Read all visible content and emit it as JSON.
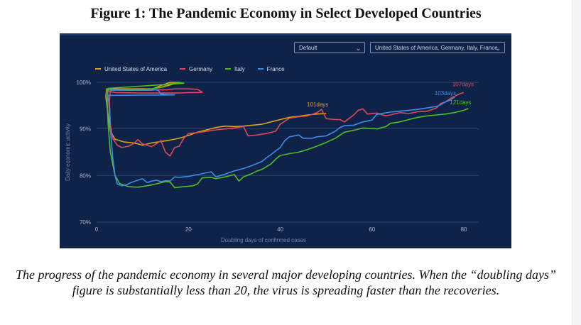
{
  "figure": {
    "title": "Figure 1: The Pandemic Economy in Select Developed Countries",
    "caption": "The progress of the pandemic economy in several major developing countries. When the “doubling days” figure is substantially less than 20, the virus is spreading faster than the recoveries."
  },
  "controls": {
    "mode_value": "Default",
    "countries_value": "United States of America, Germany, Italy, France",
    "dropdown_icon": "chevron-down-icon"
  },
  "colors": {
    "background": "#0f2349",
    "grid": "#2a416b",
    "axis_text": "#aab6cc",
    "usa": "#d9a317",
    "germany": "#e0475b",
    "italy": "#4fbd24",
    "france": "#3d8ce6"
  },
  "chart_data": {
    "type": "line",
    "title": "",
    "xlabel": "Doubling days of confirmed cases",
    "ylabel": "Daily economic activity",
    "xlim": [
      0,
      82
    ],
    "ylim": [
      70,
      100
    ],
    "x_ticks": [
      0,
      20,
      40,
      60,
      80
    ],
    "x_tick_labels": [
      "0",
      "20",
      "40",
      "60",
      "80"
    ],
    "y_ticks": [
      70,
      80,
      90,
      100
    ],
    "y_tick_labels": [
      "70%",
      "80%",
      "90%",
      "100%"
    ],
    "grid": true,
    "legend_position": "top-left",
    "series": [
      {
        "name": "United States of America",
        "color_key": "usa",
        "end_label": "101days",
        "points": [
          [
            2,
            98.5
          ],
          [
            12,
            98.5
          ],
          [
            14,
            99.3
          ],
          [
            16,
            100
          ],
          [
            18,
            100
          ],
          [
            14.5,
            99
          ],
          [
            12,
            98.6
          ],
          [
            2.2,
            98.6
          ],
          [
            2,
            97
          ],
          [
            2.5,
            93
          ],
          [
            3,
            89.5
          ],
          [
            4,
            87.8
          ],
          [
            6,
            87.2
          ],
          [
            8,
            87
          ],
          [
            9,
            86.8
          ],
          [
            10,
            86.5
          ],
          [
            12,
            87
          ],
          [
            14,
            87.3
          ],
          [
            16,
            87.6
          ],
          [
            18,
            88
          ],
          [
            20,
            88.6
          ],
          [
            22,
            89.3
          ],
          [
            24,
            89.8
          ],
          [
            26,
            90.3
          ],
          [
            28,
            90.6
          ],
          [
            30,
            90.5
          ],
          [
            32,
            90.6
          ],
          [
            34,
            90.8
          ],
          [
            36,
            91
          ],
          [
            38,
            91.5
          ],
          [
            40,
            92
          ],
          [
            42,
            92.5
          ],
          [
            44,
            92.7
          ],
          [
            46,
            93
          ],
          [
            48,
            93.2
          ],
          [
            50,
            93.3
          ]
        ]
      },
      {
        "name": "Germany",
        "color_key": "germany",
        "end_label": "107days",
        "points": [
          [
            2,
            98.4
          ],
          [
            3,
            98
          ],
          [
            4,
            97.8
          ],
          [
            10,
            97.7
          ],
          [
            18,
            97.7
          ],
          [
            20,
            97.8
          ],
          [
            22,
            97.8
          ],
          [
            23,
            97.9
          ],
          [
            22,
            98.5
          ],
          [
            20,
            98.6
          ],
          [
            17,
            98.6
          ],
          [
            16,
            98.5
          ],
          [
            15.5,
            98.4
          ],
          [
            3,
            98.3
          ],
          [
            2.8,
            96
          ],
          [
            3,
            91
          ],
          [
            3.5,
            88
          ],
          [
            4.5,
            86.5
          ],
          [
            5.5,
            86
          ],
          [
            7,
            86.3
          ],
          [
            8,
            86.8
          ],
          [
            9,
            87.7
          ],
          [
            10,
            86.8
          ],
          [
            11,
            86.5
          ],
          [
            12,
            86.2
          ],
          [
            13,
            86.8
          ],
          [
            14,
            87.5
          ],
          [
            15,
            85
          ],
          [
            16,
            84.2
          ],
          [
            17,
            86
          ],
          [
            18,
            86.3
          ],
          [
            19,
            88
          ],
          [
            20,
            89
          ],
          [
            22,
            89.2
          ],
          [
            24,
            89.5
          ],
          [
            26,
            89.8
          ],
          [
            28,
            90
          ],
          [
            30,
            90.2
          ],
          [
            32,
            90.5
          ],
          [
            33,
            88.5
          ],
          [
            35,
            88.7
          ],
          [
            37,
            89
          ],
          [
            39,
            89.5
          ],
          [
            40,
            91
          ],
          [
            42,
            92.3
          ],
          [
            44,
            92.6
          ],
          [
            46,
            92.8
          ],
          [
            48,
            93.5
          ],
          [
            49,
            94.2
          ],
          [
            50,
            92.2
          ],
          [
            52,
            92
          ],
          [
            53,
            92
          ],
          [
            54,
            91.5
          ],
          [
            56,
            93
          ],
          [
            57,
            94
          ],
          [
            58,
            94.3
          ],
          [
            59,
            93.2
          ],
          [
            61,
            93.4
          ],
          [
            63,
            92.8
          ],
          [
            64,
            93
          ],
          [
            66,
            93.5
          ],
          [
            68,
            93.3
          ],
          [
            70,
            93.7
          ],
          [
            72,
            93.8
          ],
          [
            74,
            94.5
          ],
          [
            75,
            95.5
          ],
          [
            76,
            95.8
          ],
          [
            77,
            96.5
          ],
          [
            78,
            97
          ],
          [
            79,
            97.5
          ],
          [
            80,
            97.8
          ]
        ]
      },
      {
        "name": "Italy",
        "color_key": "italy",
        "end_label": "121days",
        "points": [
          [
            2,
            98.4
          ],
          [
            6,
            98.5
          ],
          [
            10,
            98.5
          ],
          [
            12,
            98.6
          ],
          [
            14,
            98.9
          ],
          [
            16,
            99.7
          ],
          [
            18,
            100
          ],
          [
            19,
            99.8
          ],
          [
            2.5,
            98.7
          ],
          [
            2.3,
            96
          ],
          [
            2.5,
            91
          ],
          [
            3,
            85
          ],
          [
            4,
            80
          ],
          [
            5,
            78.3
          ],
          [
            7,
            77.6
          ],
          [
            9,
            77.5
          ],
          [
            11,
            77.8
          ],
          [
            13,
            78.2
          ],
          [
            15,
            78.7
          ],
          [
            16,
            78.6
          ],
          [
            17,
            77.4
          ],
          [
            19,
            77.6
          ],
          [
            21,
            77.8
          ],
          [
            22,
            78.2
          ],
          [
            23,
            79.5
          ],
          [
            25,
            79.6
          ],
          [
            26,
            79.3
          ],
          [
            28,
            79.7
          ],
          [
            30,
            80.2
          ],
          [
            31,
            78.8
          ],
          [
            32,
            79.7
          ],
          [
            34,
            80.5
          ],
          [
            35,
            81
          ],
          [
            36,
            81.3
          ],
          [
            38,
            82.5
          ],
          [
            39,
            83.5
          ],
          [
            40,
            84.3
          ],
          [
            42,
            84.7
          ],
          [
            44,
            85
          ],
          [
            46,
            85.6
          ],
          [
            48,
            86.3
          ],
          [
            50,
            87.1
          ],
          [
            52,
            88
          ],
          [
            54,
            89.3
          ],
          [
            56,
            89.7
          ],
          [
            58,
            90.2
          ],
          [
            60,
            90.1
          ],
          [
            61,
            90
          ],
          [
            63,
            90.5
          ],
          [
            64,
            91.2
          ],
          [
            66,
            91.5
          ],
          [
            68,
            92
          ],
          [
            70,
            92.5
          ],
          [
            72,
            92.8
          ],
          [
            74,
            93
          ],
          [
            76,
            93.2
          ],
          [
            78,
            93.5
          ],
          [
            80,
            94
          ],
          [
            81,
            94.4
          ]
        ]
      },
      {
        "name": "France",
        "color_key": "france",
        "end_label": "103days",
        "points": [
          [
            2,
            98.6
          ],
          [
            4,
            98.4
          ],
          [
            5,
            98.3
          ],
          [
            10,
            98.3
          ],
          [
            12,
            98.3
          ],
          [
            13,
            98.4
          ],
          [
            13.5,
            98.2
          ],
          [
            14,
            97.5
          ],
          [
            15,
            97.4
          ],
          [
            17,
            97.3
          ],
          [
            2.5,
            97.2
          ],
          [
            2.7,
            95
          ],
          [
            3,
            90
          ],
          [
            3.5,
            84
          ],
          [
            4,
            80
          ],
          [
            4.5,
            78.2
          ],
          [
            5.5,
            77.8
          ],
          [
            6.5,
            78
          ],
          [
            7.5,
            78.5
          ],
          [
            9,
            79
          ],
          [
            10,
            79.3
          ],
          [
            11,
            78.5
          ],
          [
            12,
            78.8
          ],
          [
            13,
            79
          ],
          [
            14,
            78.7
          ],
          [
            15,
            78.9
          ],
          [
            16,
            78.8
          ],
          [
            17,
            79.7
          ],
          [
            18,
            79.6
          ],
          [
            20,
            79.8
          ],
          [
            22,
            80.2
          ],
          [
            24,
            80.6
          ],
          [
            25,
            80.8
          ],
          [
            26,
            79.7
          ],
          [
            27,
            80
          ],
          [
            28,
            80.3
          ],
          [
            30,
            81
          ],
          [
            32,
            81.5
          ],
          [
            34,
            82.2
          ],
          [
            36,
            83
          ],
          [
            37,
            83.8
          ],
          [
            38,
            84.5
          ],
          [
            40,
            86
          ],
          [
            41,
            87.5
          ],
          [
            42,
            88.3
          ],
          [
            44,
            88.7
          ],
          [
            45,
            88
          ],
          [
            47,
            88
          ],
          [
            48,
            88.3
          ],
          [
            50,
            88.5
          ],
          [
            52,
            89.5
          ],
          [
            53,
            90.3
          ],
          [
            54,
            90.7
          ],
          [
            56,
            90.8
          ],
          [
            58,
            91.5
          ],
          [
            60,
            91.9
          ],
          [
            61,
            93.1
          ],
          [
            62,
            93.3
          ],
          [
            64,
            93.6
          ],
          [
            66,
            93.8
          ],
          [
            68,
            94
          ],
          [
            70,
            94.2
          ],
          [
            72,
            94.5
          ],
          [
            74,
            94.8
          ],
          [
            75,
            95.2
          ],
          [
            76,
            95.8
          ],
          [
            77,
            96.2
          ],
          [
            78,
            96.8
          ]
        ]
      }
    ]
  }
}
